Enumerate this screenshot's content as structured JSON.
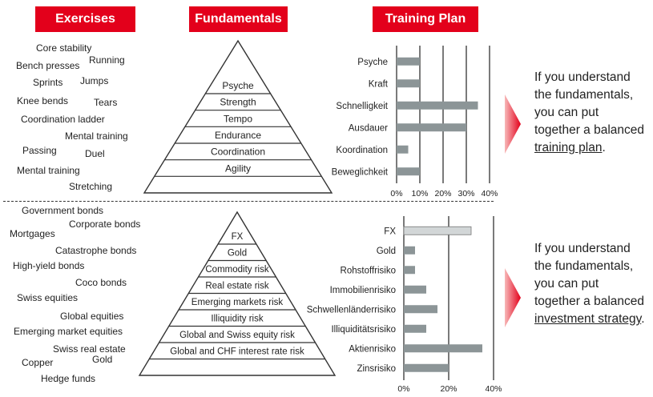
{
  "headers": {
    "exercises": "Exercises",
    "fundamentals": "Fundamentals",
    "training_plan": "Training Plan"
  },
  "colors": {
    "header_red": "#e3001b",
    "bar_gray": "#8c9597",
    "bar_light": "#d2d6d7"
  },
  "top": {
    "exercises": [
      "Core stability",
      "Bench presses",
      "Running",
      "Sprints",
      "Jumps",
      "Knee bends",
      "Tears",
      "Coordination ladder",
      "Mental training",
      "Passing",
      "Duel",
      "Mental training",
      "Stretching"
    ],
    "pyramid": [
      "Psyche",
      "Strength",
      "Tempo",
      "Endurance",
      "Coordination",
      "Agility"
    ],
    "chart_data": {
      "type": "bar",
      "orientation": "horizontal",
      "categories": [
        "Psyche",
        "Kraft",
        "Schnelligkeit",
        "Ausdauer",
        "Koordination",
        "Beweglichkeit"
      ],
      "values": [
        10,
        10,
        35,
        30,
        5,
        10
      ],
      "xlim": [
        0,
        40
      ],
      "ticks": [
        "0%",
        "10%",
        "20%",
        "30%",
        "40%"
      ],
      "grid": true
    },
    "statement": {
      "before": "If you understand the fundamentals, you can put together a balanced ",
      "link": "training plan",
      "after": "."
    }
  },
  "bottom": {
    "assets": [
      "Government bonds",
      "Corporate bonds",
      "Mortgages",
      "Catastrophe bonds",
      "High-yield bonds",
      "Coco bonds",
      "Swiss equities",
      "Global equities",
      "Emerging market equities",
      "Swiss real estate",
      "Copper",
      "Gold",
      "Hedge funds"
    ],
    "pyramid": [
      "FX",
      "Gold",
      "Commodity risk",
      "Real estate risk",
      "Emerging markets risk",
      "Illiquidity risk",
      "Global and Swiss equity risk",
      "Global and CHF interest rate risk"
    ],
    "chart_data": {
      "type": "bar",
      "orientation": "horizontal",
      "categories": [
        "FX",
        "Gold",
        "Rohstoffrisiko",
        "Immobilienrisiko",
        "Schwellenländerrisiko",
        "Illiquiditätsrisiko",
        "Aktienrisiko",
        "Zinsrisiko"
      ],
      "values": [
        30,
        5,
        5,
        10,
        15,
        10,
        35,
        20
      ],
      "highlight_index": 0,
      "xlim": [
        0,
        40
      ],
      "ticks": [
        "0%",
        "20%",
        "40%"
      ],
      "grid": true
    },
    "statement": {
      "before": "If you understand the fundamentals, you can put together a balanced ",
      "link": "investment strategy",
      "after": "."
    }
  }
}
